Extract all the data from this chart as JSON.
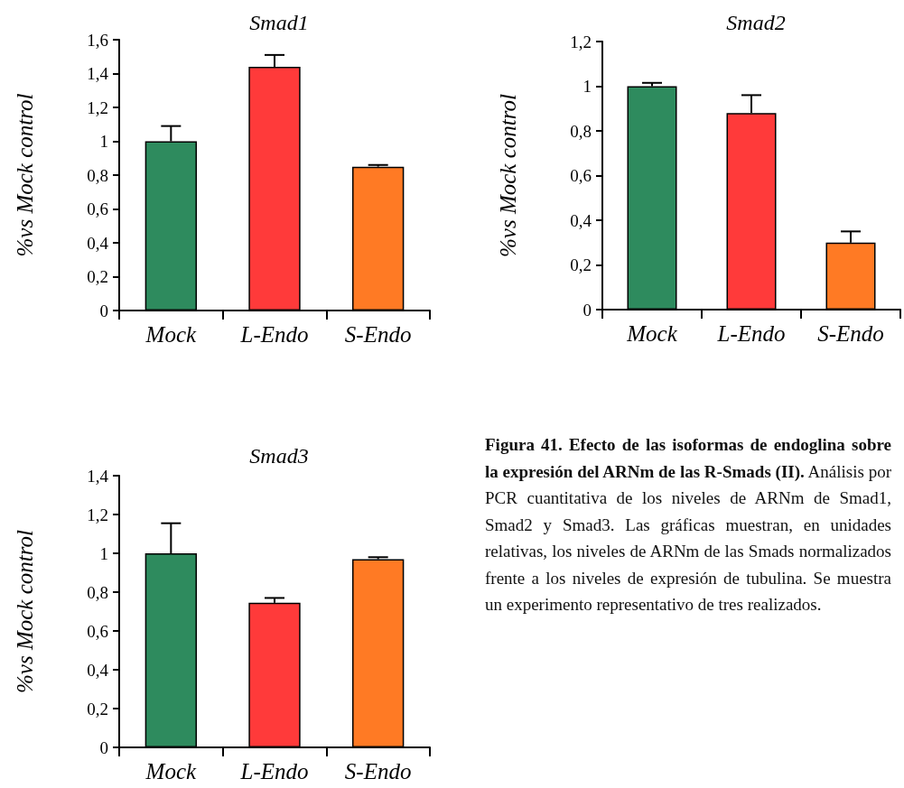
{
  "chart_data": [
    {
      "type": "bar",
      "title": "Smad1",
      "ylabel": "%vs Mock control",
      "categories": [
        "Mock",
        "L-Endo",
        "S-Endo"
      ],
      "values": [
        1.0,
        1.44,
        0.85
      ],
      "colors": [
        "#2e8b5e",
        "#ff3a3a",
        "#ff7a24"
      ],
      "errors": [
        [
          1.0,
          1.09
        ],
        [
          1.44,
          1.51
        ],
        [
          0.85,
          0.86
        ]
      ],
      "ylim": [
        0,
        1.6
      ],
      "yticks": [
        {
          "value": 0,
          "label": "0"
        },
        {
          "value": 0.2,
          "label": "0,2"
        },
        {
          "value": 0.4,
          "label": "0,4"
        },
        {
          "value": 0.6,
          "label": "0,6"
        },
        {
          "value": 0.8,
          "label": "0,8"
        },
        {
          "value": 1,
          "label": "1"
        },
        {
          "value": 1.2,
          "label": "1,2"
        },
        {
          "value": 1.4,
          "label": "1,4"
        },
        {
          "value": 1.6,
          "label": "1,6"
        }
      ],
      "grid": false
    },
    {
      "type": "bar",
      "title": "Smad2",
      "ylabel": "%vs Mock control",
      "categories": [
        "Mock",
        "L-Endo",
        "S-Endo"
      ],
      "values": [
        1.0,
        0.88,
        0.3
      ],
      "colors": [
        "#2e8b5e",
        "#ff3a3a",
        "#ff7a24"
      ],
      "errors": [
        [
          1.0,
          1.015
        ],
        [
          0.88,
          0.96
        ],
        [
          0.3,
          0.35
        ]
      ],
      "ylim": [
        0,
        1.2
      ],
      "yticks": [
        {
          "value": 0,
          "label": "0"
        },
        {
          "value": 0.2,
          "label": "0,2"
        },
        {
          "value": 0.4,
          "label": "0,4"
        },
        {
          "value": 0.6,
          "label": "0,6"
        },
        {
          "value": 0.8,
          "label": "0,8"
        },
        {
          "value": 1,
          "label": "1"
        },
        {
          "value": 1.2,
          "label": "1,2"
        }
      ],
      "grid": false
    },
    {
      "type": "bar",
      "title": "Smad3",
      "ylabel": "%vs Mock control",
      "categories": [
        "Mock",
        "L-Endo",
        "S-Endo"
      ],
      "values": [
        1.0,
        0.745,
        0.97
      ],
      "colors": [
        "#2e8b5e",
        "#ff3a3a",
        "#ff7a24"
      ],
      "errors": [
        [
          1.0,
          1.155
        ],
        [
          0.745,
          0.77
        ],
        [
          0.97,
          0.98
        ]
      ],
      "ylim": [
        0,
        1.4
      ],
      "yticks": [
        {
          "value": 0,
          "label": "0"
        },
        {
          "value": 0.2,
          "label": "0,2"
        },
        {
          "value": 0.4,
          "label": "0,4"
        },
        {
          "value": 0.6,
          "label": "0,6"
        },
        {
          "value": 0.8,
          "label": "0,8"
        },
        {
          "value": 1,
          "label": "1"
        },
        {
          "value": 1.2,
          "label": "1,2"
        },
        {
          "value": 1.4,
          "label": "1,4"
        }
      ],
      "grid": false
    },
    {
      "type": "other",
      "title": "Figura 41. Efecto de las isoformas de endoglina sobre la expresión del ARNm de las R-Smads (II).",
      "annotations": [
        "Análisis por PCR cuantitativa de los niveles de ARNm de Smad1, Smad2 y Smad3. Las gráficas muestran, en unidades relativas, los niveles de ARNm de las Smads normalizados frente a los niveles de expresión de tubulina. Se muestra un experimento representativo de tres realizados."
      ]
    }
  ]
}
